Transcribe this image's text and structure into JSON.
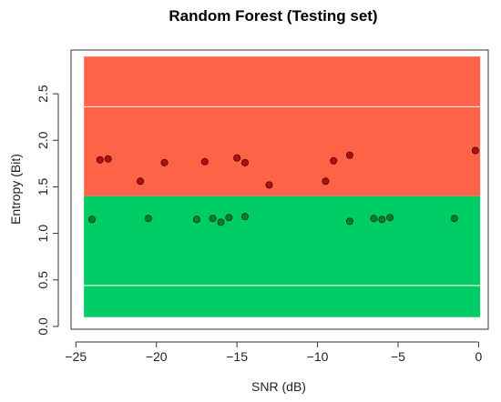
{
  "chart_data": {
    "type": "scatter",
    "title": "Random Forest (Testing set)",
    "xlabel": "SNR (dB)",
    "ylabel": "Entropy (Bit)",
    "xlim": [
      -25.3,
      0.6
    ],
    "ylim": [
      -0.03,
      2.97
    ],
    "xticks": [
      -25,
      -20,
      -15,
      -10,
      -5,
      0
    ],
    "xtick_labels": [
      "−25",
      "−20",
      "−15",
      "−10",
      "−5",
      "0"
    ],
    "yticks": [
      0.0,
      0.5,
      1.0,
      1.5,
      2.0,
      2.5
    ],
    "ytick_labels": [
      "0.0",
      "0.5",
      "1.0",
      "1.5",
      "2.0",
      "2.5"
    ],
    "regions": [
      {
        "name": "upper",
        "ymin": 1.4,
        "ymax": 2.9,
        "color": "#ff6347"
      },
      {
        "name": "lower",
        "ymin": 0.1,
        "ymax": 1.4,
        "color": "#00cc66"
      }
    ],
    "region_xrange": [
      -24.5,
      0.1
    ],
    "grid": {
      "horizontal_at": [
        0.44,
        2.36
      ],
      "color": "#ffffff"
    },
    "series": [
      {
        "group": "upper",
        "color": "#b01010",
        "points": [
          {
            "x": -23.5,
            "y": 1.79
          },
          {
            "x": -23.0,
            "y": 1.8
          },
          {
            "x": -21.0,
            "y": 1.56
          },
          {
            "x": -19.5,
            "y": 1.76
          },
          {
            "x": -17.0,
            "y": 1.77
          },
          {
            "x": -15.0,
            "y": 1.81
          },
          {
            "x": -14.5,
            "y": 1.76
          },
          {
            "x": -13.0,
            "y": 1.52
          },
          {
            "x": -9.5,
            "y": 1.56
          },
          {
            "x": -9.0,
            "y": 1.78
          },
          {
            "x": -8.0,
            "y": 1.84
          },
          {
            "x": -0.2,
            "y": 1.89
          }
        ]
      },
      {
        "group": "lower",
        "color": "#117a2a",
        "points": [
          {
            "x": -24.0,
            "y": 1.15
          },
          {
            "x": -20.5,
            "y": 1.16
          },
          {
            "x": -17.5,
            "y": 1.15
          },
          {
            "x": -16.5,
            "y": 1.16
          },
          {
            "x": -16.0,
            "y": 1.12
          },
          {
            "x": -15.5,
            "y": 1.17
          },
          {
            "x": -14.5,
            "y": 1.18
          },
          {
            "x": -8.0,
            "y": 1.13
          },
          {
            "x": -6.5,
            "y": 1.16
          },
          {
            "x": -6.0,
            "y": 1.15
          },
          {
            "x": -5.5,
            "y": 1.17
          },
          {
            "x": -1.5,
            "y": 1.16
          }
        ]
      }
    ]
  }
}
